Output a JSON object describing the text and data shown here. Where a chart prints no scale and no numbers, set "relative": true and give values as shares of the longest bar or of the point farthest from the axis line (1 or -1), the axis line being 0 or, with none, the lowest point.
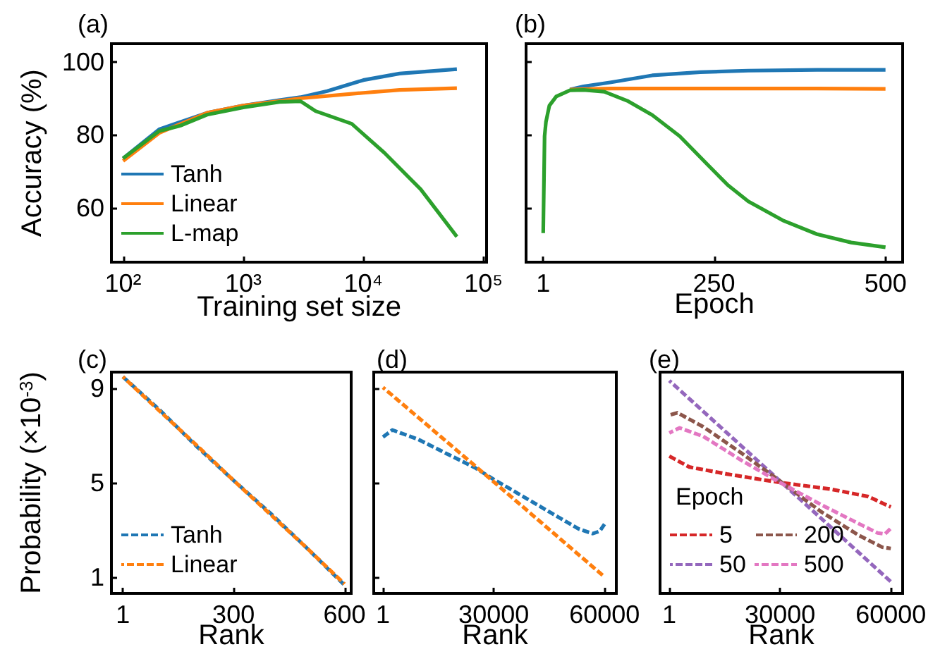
{
  "chart_data": [
    {
      "type": "line",
      "title": "(a)",
      "xlabel": "Training set size",
      "ylabel": "Accuracy (%)",
      "log": "x",
      "xlim": [
        80,
        106000
      ],
      "ylim": [
        45,
        105
      ],
      "xticks": [
        {
          "value": 100,
          "label": "10²"
        },
        {
          "value": 1000,
          "label": "10³"
        },
        {
          "value": 10000,
          "label": "10⁴"
        },
        {
          "value": 100000,
          "label": "10⁵"
        }
      ],
      "yticks": [
        60,
        80,
        100
      ],
      "legend": "bottom left",
      "line_style": "solid",
      "series": [
        {
          "name": "Tanh",
          "color": "#1f77b4",
          "x": [
            100,
            200,
            500,
            1000,
            2000,
            3000,
            5000,
            10000,
            20000,
            60000
          ],
          "values": [
            73.5,
            81.5,
            86,
            88,
            89.5,
            90.3,
            92,
            95,
            96.8,
            98
          ]
        },
        {
          "name": "Linear",
          "color": "#ff7f0e",
          "x": [
            100,
            200,
            500,
            1000,
            3000,
            10000,
            20000,
            60000
          ],
          "values": [
            72.8,
            80.5,
            86,
            88,
            90,
            91.5,
            92.3,
            92.8
          ]
        },
        {
          "name": "L-map",
          "color": "#2ca02c",
          "x": [
            100,
            200,
            300,
            500,
            1000,
            2000,
            3000,
            4000,
            8000,
            15000,
            30000,
            60000
          ],
          "values": [
            73.5,
            81,
            82.5,
            85.5,
            87.5,
            89,
            89.2,
            86.5,
            83,
            75,
            65,
            52
          ]
        }
      ]
    },
    {
      "type": "line",
      "title": "(b)",
      "xlabel": "Epoch",
      "xlim": [
        -24,
        525
      ],
      "ylim": [
        45,
        105
      ],
      "xticks": [
        1,
        250,
        500
      ],
      "yticks": [
        60,
        80,
        100
      ],
      "tick_labels": "x",
      "line_style": "solid",
      "series": [
        {
          "color": "#1f77b4",
          "x": [
            40,
            60,
            100,
            160,
            230,
            300,
            400,
            500
          ],
          "values": [
            92.4,
            93.3,
            94.4,
            96.3,
            97.2,
            97.6,
            97.8,
            97.8
          ]
        },
        {
          "color": "#ff7f0e",
          "x": [
            40,
            100,
            200,
            300,
            400,
            500
          ],
          "values": [
            92.4,
            92.7,
            92.7,
            92.7,
            92.7,
            92.6
          ]
        },
        {
          "color": "#2ca02c",
          "x": [
            1,
            3,
            5,
            10,
            20,
            40,
            60,
            90,
            125,
            160,
            200,
            240,
            270,
            300,
            350,
            400,
            450,
            500
          ],
          "values": [
            53,
            79.6,
            83.5,
            88,
            90.5,
            92.2,
            92.3,
            91.8,
            89.2,
            85.4,
            79.6,
            71.9,
            66.2,
            61.7,
            56.5,
            52.7,
            50.4,
            49.1
          ]
        }
      ]
    },
    {
      "type": "line",
      "title": "(c)",
      "xlabel": "Rank",
      "ylabel": "Probability (×10$^{-3}$)",
      "xlim": [
        -30,
        618
      ],
      "ylim": [
        0.3,
        9.7
      ],
      "xticks": [
        1,
        300,
        600
      ],
      "yticks": [
        1,
        5,
        9
      ],
      "legend": "bottom left",
      "line_style": "dashed",
      "series": [
        {
          "name": "Tanh",
          "color": "#1f77b4",
          "x": [
            1,
            100,
            200,
            300,
            400,
            500,
            600
          ],
          "values": [
            9.5,
            8.1,
            6.55,
            5.1,
            3.7,
            2.2,
            0.65
          ]
        },
        {
          "name": "Linear",
          "color": "#ff7f0e",
          "x": [
            1,
            100,
            200,
            300,
            400,
            500,
            600
          ],
          "values": [
            9.5,
            8.05,
            6.6,
            5.1,
            3.65,
            2.2,
            0.7
          ]
        }
      ]
    },
    {
      "type": "line",
      "title": "(d)",
      "xlabel": "Rank",
      "xlim": [
        -2500,
        63200
      ],
      "ylim": [
        0.3,
        9.7
      ],
      "xticks": [
        1,
        30000,
        60000
      ],
      "yticks": [
        1,
        5,
        9
      ],
      "tick_labels": "x",
      "line_style": "dashed",
      "series": [
        {
          "color": "#1f77b4",
          "x": [
            1,
            2550,
            9600,
            17200,
            24900,
            30000,
            37700,
            45300,
            53000,
            56800,
            58700,
            60000
          ],
          "values": [
            6.94,
            7.24,
            6.84,
            6.24,
            5.64,
            5.14,
            4.44,
            3.74,
            3.04,
            2.84,
            2.94,
            3.24
          ]
        },
        {
          "color": "#ff7f0e",
          "x": [
            1,
            30000,
            60000
          ],
          "values": [
            9.05,
            5.04,
            1.0
          ]
        }
      ]
    },
    {
      "type": "line",
      "title": "(e)",
      "xlabel": "Rank",
      "relative": true,
      "xlim": [
        -2500,
        63200
      ],
      "xticks": [
        1,
        30000,
        60000
      ],
      "tick_labels": "x",
      "legend": "bottom left",
      "legend_title": "Epoch",
      "line_style": "dashed",
      "series": [
        {
          "name": "5",
          "color": "#d62728",
          "x": [
            1,
            5400,
            15600,
            30000,
            43700,
            53900,
            60000
          ],
          "values": [
            0.645,
            0.594,
            0.561,
            0.521,
            0.49,
            0.455,
            0.406
          ]
        },
        {
          "name": "50",
          "color": "#9467bd",
          "x": [
            1,
            30000,
            60000
          ],
          "values": [
            1,
            0.528,
            0.055
          ]
        },
        {
          "name": "200",
          "color": "#8c564b",
          "x": [
            1,
            2200,
            9200,
            19400,
            30000,
            41100,
            51300,
            57700,
            60000
          ],
          "values": [
            0.838,
            0.849,
            0.783,
            0.661,
            0.528,
            0.384,
            0.273,
            0.217,
            0.211
          ]
        },
        {
          "name": "500",
          "color": "#e377c2",
          "x": [
            1,
            2800,
            9200,
            19400,
            30000,
            41100,
            51300,
            56400,
            58400,
            60000
          ],
          "values": [
            0.754,
            0.778,
            0.738,
            0.627,
            0.521,
            0.417,
            0.328,
            0.284,
            0.279,
            0.306
          ]
        }
      ]
    }
  ]
}
